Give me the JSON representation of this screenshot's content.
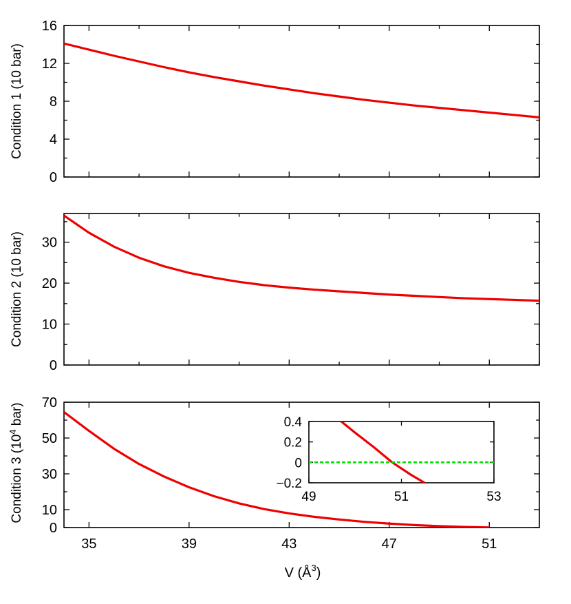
{
  "colors": {
    "curve": "#ee0000",
    "zero_line": "#00dd00",
    "axes": "#000000"
  },
  "xlabel_main": "V (Å",
  "xlabel_sup": "3",
  "xlabel_tail": ")",
  "chart_data": [
    {
      "type": "line",
      "ylabel": "Condition 1 (10 bar)",
      "xlim": [
        34,
        53
      ],
      "ylim": [
        0,
        16
      ],
      "yticks": [
        0,
        4,
        8,
        12,
        16
      ],
      "yminor": [
        2,
        6,
        10,
        14
      ],
      "series": [
        {
          "x": [
            34,
            35,
            36,
            37,
            38,
            39,
            40,
            41,
            42,
            43,
            44,
            45,
            46,
            47,
            48,
            49,
            50,
            51,
            52,
            53
          ],
          "y": [
            14.1,
            13.45,
            12.8,
            12.2,
            11.6,
            11.05,
            10.55,
            10.1,
            9.65,
            9.25,
            8.85,
            8.5,
            8.15,
            7.85,
            7.55,
            7.3,
            7.05,
            6.8,
            6.55,
            6.3
          ]
        }
      ]
    },
    {
      "type": "line",
      "ylabel": "Condition 2 (10 bar)",
      "xlim": [
        34,
        53
      ],
      "ylim": [
        0,
        37
      ],
      "yticks": [
        0,
        10,
        20,
        30
      ],
      "yminor": [
        5,
        15,
        25,
        35
      ],
      "series": [
        {
          "x": [
            34,
            35,
            36,
            37,
            38,
            39,
            40,
            41,
            42,
            43,
            44,
            45,
            46,
            47,
            48,
            49,
            50,
            51,
            52,
            53
          ],
          "y": [
            36.5,
            32.3,
            28.9,
            26.2,
            24.1,
            22.5,
            21.3,
            20.3,
            19.5,
            18.9,
            18.4,
            18.0,
            17.6,
            17.2,
            16.9,
            16.6,
            16.3,
            16.1,
            15.9,
            15.7
          ]
        }
      ]
    },
    {
      "type": "line",
      "ylabel_main": "Condition 3 (10",
      "ylabel_sup": "4",
      "ylabel_tail": " bar)",
      "xlim": [
        34,
        53
      ],
      "ylim": [
        0,
        70
      ],
      "yticks": [
        0,
        10,
        30,
        50,
        70
      ],
      "yminor": [
        20,
        40,
        60
      ],
      "xticks": [
        35,
        39,
        43,
        47,
        51
      ],
      "series": [
        {
          "x": [
            34,
            35,
            36,
            37,
            38,
            39,
            40,
            41,
            42,
            43,
            44,
            45,
            46,
            47,
            48,
            49,
            50,
            51
          ],
          "y": [
            64.5,
            54.0,
            44.0,
            35.5,
            28.5,
            22.5,
            17.5,
            13.5,
            10.3,
            7.9,
            6.0,
            4.5,
            3.2,
            2.2,
            1.4,
            0.8,
            0.35,
            0.05
          ]
        }
      ]
    },
    {
      "type": "line",
      "inset": true,
      "xlim": [
        49,
        53
      ],
      "ylim": [
        -0.2,
        0.4
      ],
      "xticks": [
        49,
        51,
        53
      ],
      "yticks": [
        -0.2,
        0,
        0.2,
        0.4
      ],
      "ytick_labels": [
        "−0.2",
        "0",
        "0.2",
        "0.4"
      ],
      "series": [
        {
          "x": [
            49.7,
            50.0,
            50.4,
            50.8,
            51.2,
            51.5
          ],
          "y": [
            0.4,
            0.29,
            0.15,
            0.0,
            -0.12,
            -0.2
          ]
        },
        {
          "x": [
            49,
            53
          ],
          "y": [
            0,
            0
          ],
          "style": "dashed"
        }
      ]
    }
  ]
}
